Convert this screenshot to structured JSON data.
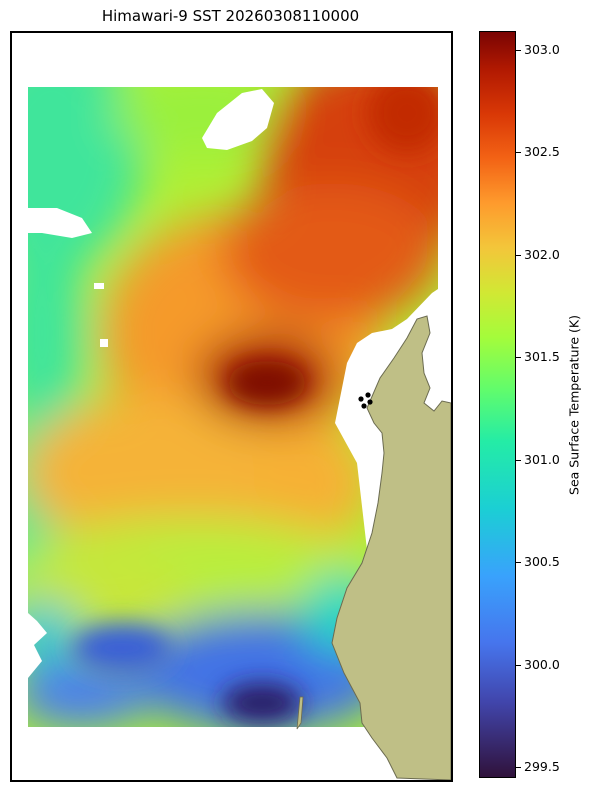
{
  "title": "Himawari-9 SST 20260308110000",
  "colorbar": {
    "label": "Sea Surface Temperature (K)",
    "ticks": [
      "303.0",
      "302.5",
      "302.0",
      "301.5",
      "301.0",
      "300.5",
      "300.0",
      "299.5"
    ],
    "range": [
      299.45,
      303.1
    ],
    "colormap": "turbo"
  },
  "colors": {
    "land": "#bfbf86",
    "land_outline": "#6b6b50",
    "no_data": "#ffffff",
    "markers": "#000000"
  },
  "map": {
    "markers_count": 4
  }
}
